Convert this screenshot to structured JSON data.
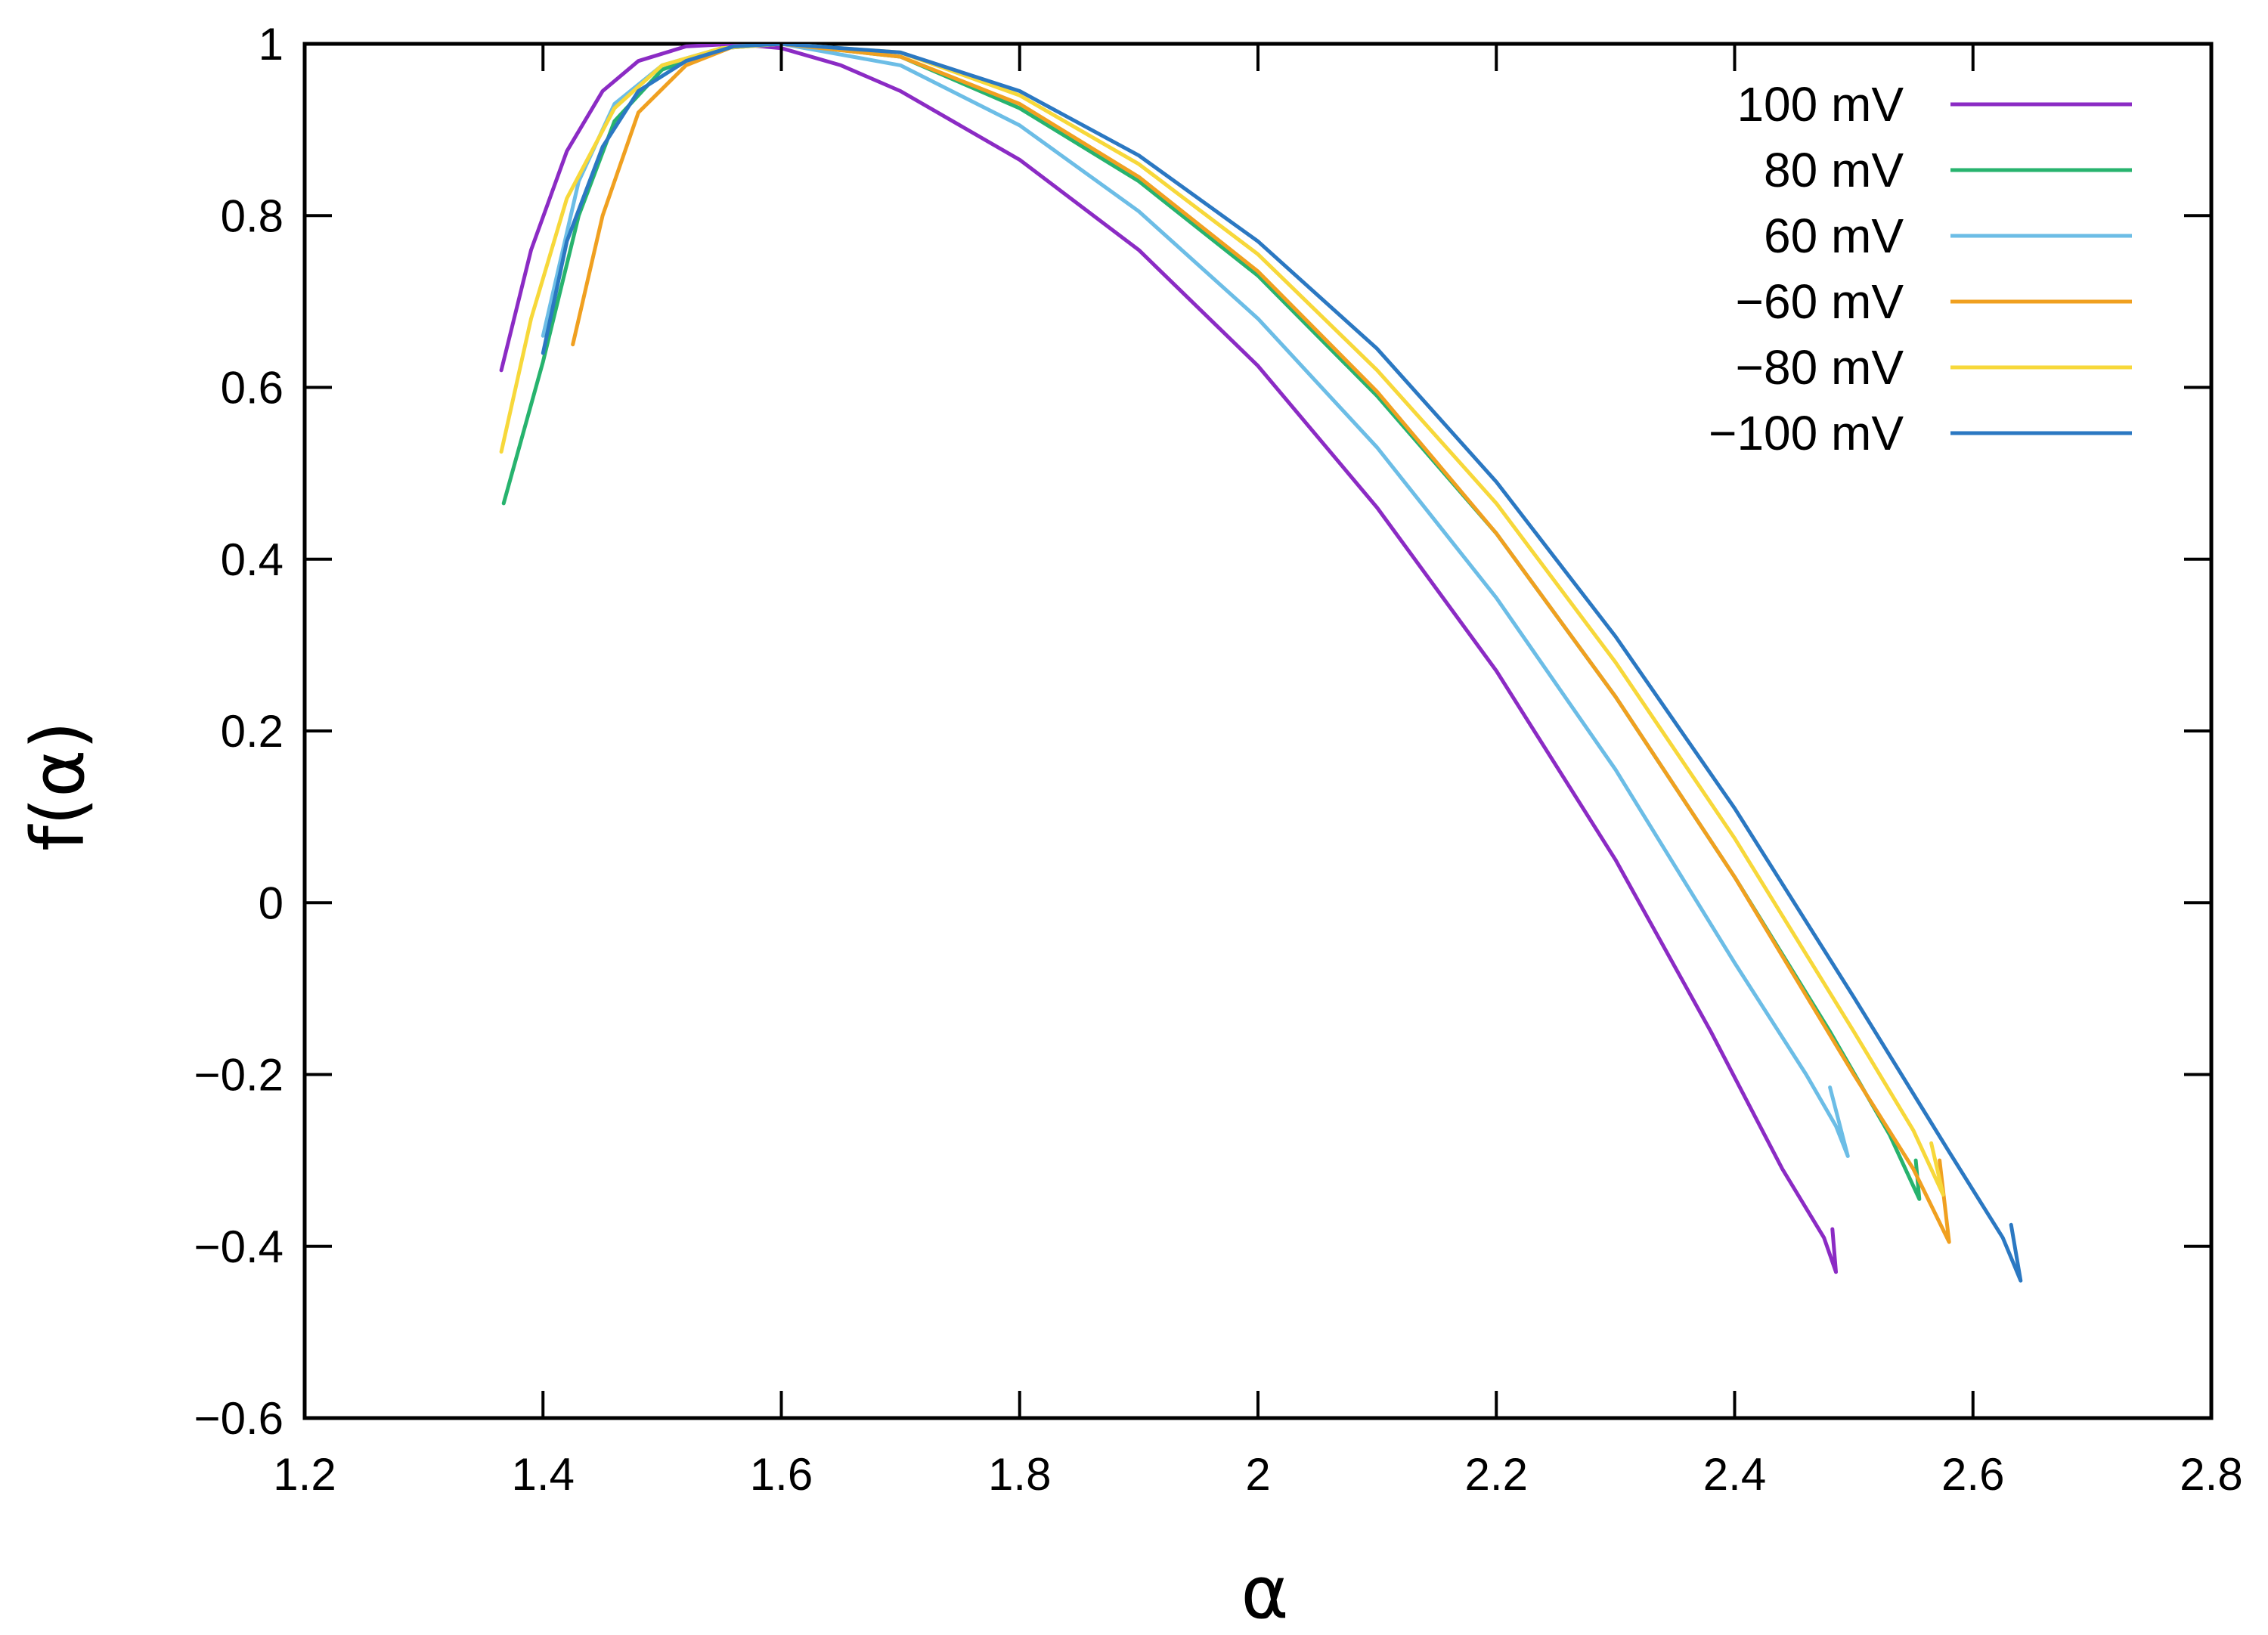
{
  "chart_data": {
    "type": "line",
    "title": "",
    "xlabel": "α",
    "ylabel": "f(α)",
    "xlim": [
      1.2,
      2.8
    ],
    "ylim": [
      -0.6,
      1.0
    ],
    "xticks": [
      1.2,
      1.4,
      1.6,
      1.8,
      2.0,
      2.2,
      2.4,
      2.6,
      2.8
    ],
    "xtick_labels": [
      "1.2",
      "1.4",
      "1.6",
      "1.8",
      "2",
      "2.2",
      "2.4",
      "2.6",
      "2.8"
    ],
    "yticks": [
      1.0,
      0.8,
      0.6,
      0.4,
      0.2,
      0.0,
      -0.2,
      -0.4,
      -0.6
    ],
    "ytick_labels": [
      "1",
      "0.8",
      "0.6",
      "0.4",
      "0.2",
      "0",
      "−0.2",
      "−0.4",
      "−0.6"
    ],
    "grid": false,
    "legend_position": "top-right",
    "series": [
      {
        "name": "100 mV",
        "color": "#8b2bc4",
        "points": [
          [
            1.365,
            0.62
          ],
          [
            1.39,
            0.76
          ],
          [
            1.42,
            0.875
          ],
          [
            1.45,
            0.945
          ],
          [
            1.48,
            0.98
          ],
          [
            1.52,
            0.997
          ],
          [
            1.56,
            1.0
          ],
          [
            1.6,
            0.995
          ],
          [
            1.65,
            0.975
          ],
          [
            1.7,
            0.945
          ],
          [
            1.8,
            0.865
          ],
          [
            1.9,
            0.76
          ],
          [
            2.0,
            0.625
          ],
          [
            2.1,
            0.46
          ],
          [
            2.2,
            0.27
          ],
          [
            2.3,
            0.05
          ],
          [
            2.38,
            -0.15
          ],
          [
            2.44,
            -0.31
          ],
          [
            2.475,
            -0.39
          ],
          [
            2.485,
            -0.43
          ],
          [
            2.482,
            -0.38
          ]
        ]
      },
      {
        "name": "80 mV",
        "color": "#27b36e",
        "points": [
          [
            1.367,
            0.465
          ],
          [
            1.4,
            0.63
          ],
          [
            1.43,
            0.8
          ],
          [
            1.46,
            0.91
          ],
          [
            1.5,
            0.97
          ],
          [
            1.55,
            0.995
          ],
          [
            1.6,
            1.0
          ],
          [
            1.7,
            0.985
          ],
          [
            1.8,
            0.925
          ],
          [
            1.9,
            0.84
          ],
          [
            2.0,
            0.73
          ],
          [
            2.1,
            0.59
          ],
          [
            2.2,
            0.43
          ],
          [
            2.3,
            0.24
          ],
          [
            2.4,
            0.03
          ],
          [
            2.48,
            -0.15
          ],
          [
            2.53,
            -0.27
          ],
          [
            2.555,
            -0.345
          ],
          [
            2.552,
            -0.3
          ]
        ]
      },
      {
        "name": "60 mV",
        "color": "#6cbde6",
        "points": [
          [
            1.4,
            0.66
          ],
          [
            1.43,
            0.84
          ],
          [
            1.46,
            0.93
          ],
          [
            1.5,
            0.975
          ],
          [
            1.55,
            0.995
          ],
          [
            1.6,
            1.0
          ],
          [
            1.7,
            0.975
          ],
          [
            1.8,
            0.905
          ],
          [
            1.9,
            0.805
          ],
          [
            2.0,
            0.68
          ],
          [
            2.1,
            0.53
          ],
          [
            2.2,
            0.355
          ],
          [
            2.3,
            0.155
          ],
          [
            2.4,
            -0.07
          ],
          [
            2.46,
            -0.2
          ],
          [
            2.485,
            -0.26
          ],
          [
            2.495,
            -0.295
          ],
          [
            2.48,
            -0.215
          ]
        ]
      },
      {
        "name": "−60 mV",
        "color": "#f0a020",
        "points": [
          [
            1.425,
            0.65
          ],
          [
            1.45,
            0.8
          ],
          [
            1.48,
            0.92
          ],
          [
            1.52,
            0.975
          ],
          [
            1.56,
            0.997
          ],
          [
            1.6,
            1.0
          ],
          [
            1.7,
            0.985
          ],
          [
            1.8,
            0.93
          ],
          [
            1.9,
            0.845
          ],
          [
            2.0,
            0.735
          ],
          [
            2.1,
            0.595
          ],
          [
            2.2,
            0.43
          ],
          [
            2.3,
            0.24
          ],
          [
            2.4,
            0.03
          ],
          [
            2.5,
            -0.2
          ],
          [
            2.55,
            -0.31
          ],
          [
            2.58,
            -0.395
          ],
          [
            2.572,
            -0.3
          ]
        ]
      },
      {
        "name": "−80 mV",
        "color": "#f7d83a",
        "points": [
          [
            1.365,
            0.525
          ],
          [
            1.39,
            0.68
          ],
          [
            1.42,
            0.82
          ],
          [
            1.46,
            0.925
          ],
          [
            1.5,
            0.975
          ],
          [
            1.55,
            0.995
          ],
          [
            1.6,
            1.0
          ],
          [
            1.7,
            0.99
          ],
          [
            1.8,
            0.94
          ],
          [
            1.9,
            0.86
          ],
          [
            2.0,
            0.755
          ],
          [
            2.1,
            0.62
          ],
          [
            2.2,
            0.465
          ],
          [
            2.3,
            0.28
          ],
          [
            2.4,
            0.075
          ],
          [
            2.5,
            -0.15
          ],
          [
            2.55,
            -0.265
          ],
          [
            2.575,
            -0.34
          ],
          [
            2.565,
            -0.28
          ]
        ]
      },
      {
        "name": "−100 mV",
        "color": "#2b78c2",
        "points": [
          [
            1.4,
            0.64
          ],
          [
            1.42,
            0.77
          ],
          [
            1.45,
            0.88
          ],
          [
            1.48,
            0.945
          ],
          [
            1.52,
            0.98
          ],
          [
            1.56,
            0.997
          ],
          [
            1.6,
            1.0
          ],
          [
            1.7,
            0.99
          ],
          [
            1.8,
            0.945
          ],
          [
            1.9,
            0.87
          ],
          [
            2.0,
            0.77
          ],
          [
            2.1,
            0.645
          ],
          [
            2.2,
            0.49
          ],
          [
            2.3,
            0.31
          ],
          [
            2.4,
            0.11
          ],
          [
            2.5,
            -0.11
          ],
          [
            2.58,
            -0.29
          ],
          [
            2.625,
            -0.39
          ],
          [
            2.64,
            -0.44
          ],
          [
            2.632,
            -0.375
          ]
        ]
      }
    ]
  }
}
